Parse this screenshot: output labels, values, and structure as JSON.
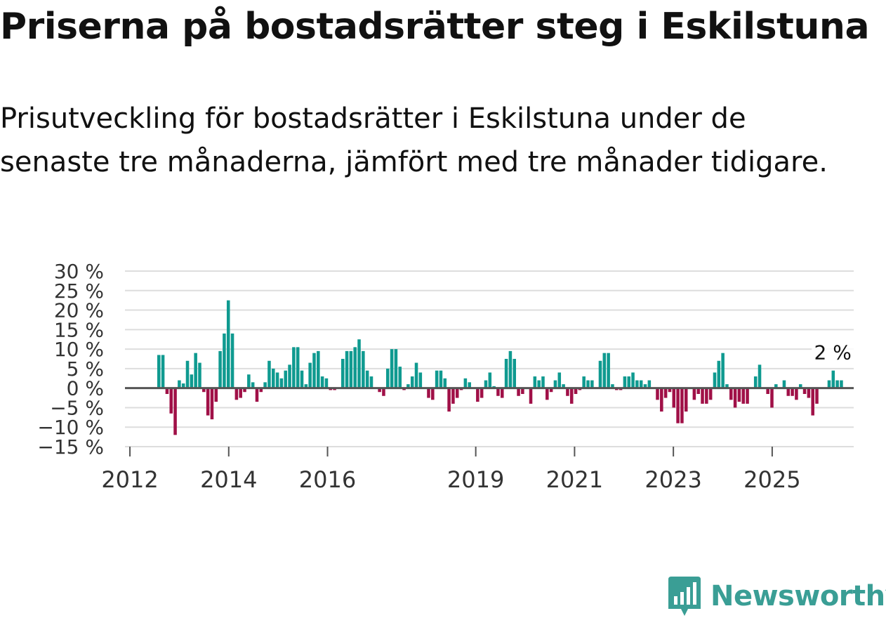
{
  "chart_data": {
    "type": "bar",
    "title": "Priserna på bostadsrätter steg i Eskilstuna",
    "subtitle": "Prisutveckling för bostadsrätter i Eskilstuna under de senaste tre månaderna, jämfört med tre månader tidigare.",
    "xlabel": "",
    "ylabel": "",
    "ylim": [
      -15,
      30
    ],
    "yticks": [
      30,
      25,
      20,
      15,
      10,
      5,
      0,
      -5,
      -10,
      -15
    ],
    "ytick_labels": [
      "30 %",
      "25 %",
      "20 %",
      "15 %",
      "10 %",
      "5 %",
      "0 %",
      "−5 %",
      "−10 %",
      "−15 %"
    ],
    "xtick_labels": [
      "2012",
      "2014",
      "2016",
      "2019",
      "2021",
      "2023",
      "2025"
    ],
    "xtick_positions": [
      2012,
      2014,
      2016,
      2019,
      2021,
      2023,
      2025
    ],
    "start_year": 2011.9,
    "end_year": 2026.65,
    "positive_color": "#0f9a90",
    "negative_color": "#a01047",
    "annotation": {
      "text": "2 %",
      "value": 2
    },
    "values": [
      8.5,
      8.5,
      -1.5,
      -6.5,
      -12,
      2,
      1.2,
      7,
      3.5,
      9,
      6.5,
      -1,
      -7,
      -8,
      -3.5,
      9.5,
      14,
      22.5,
      14,
      -3,
      -2.5,
      -1,
      3.5,
      1.5,
      -3.5,
      -1,
      1.5,
      7,
      5,
      4,
      2.5,
      4.5,
      6,
      10.5,
      10.5,
      4.5,
      1,
      6.5,
      9,
      9.5,
      3,
      2.5,
      -0.5,
      -0.5,
      0,
      7.5,
      9.5,
      9.5,
      10.5,
      12.5,
      9.5,
      4.5,
      3,
      0,
      -1,
      -2,
      5,
      10,
      10,
      5.5,
      -0.5,
      1,
      3,
      6.5,
      4,
      0,
      -2.5,
      -3,
      4.5,
      4.5,
      2.5,
      -6,
      -4,
      -2.5,
      -0.5,
      2.5,
      1.5,
      0,
      -3.5,
      -2.5,
      2,
      4,
      0.5,
      -2,
      -2.5,
      7.5,
      9.5,
      7.5,
      -2,
      -1.5,
      0,
      -4,
      3,
      2,
      3,
      -3,
      -1,
      2,
      4,
      1,
      -2,
      -4,
      -1.5,
      -0.5,
      3,
      2,
      2,
      0,
      7,
      9,
      9,
      1,
      -0.5,
      -0.5,
      3,
      3,
      4,
      2,
      2,
      1,
      2,
      0,
      -3,
      -6,
      -2.5,
      -1,
      -5,
      -9,
      -9,
      -6,
      0,
      -3,
      -1.5,
      -4,
      -4,
      -3,
      4,
      7,
      9,
      1,
      -3,
      -5,
      -3.5,
      -4,
      -4,
      0,
      3,
      6,
      0,
      -1.5,
      -5,
      1,
      0,
      2,
      -2,
      -2,
      -3,
      1,
      -1.5,
      -2.5,
      -7,
      -4,
      0,
      0,
      2,
      4.5,
      2,
      2
    ]
  },
  "brand": {
    "name": "Newsworthy",
    "icon": "newsworthy-logo-icon",
    "color": "#3a9e95"
  }
}
